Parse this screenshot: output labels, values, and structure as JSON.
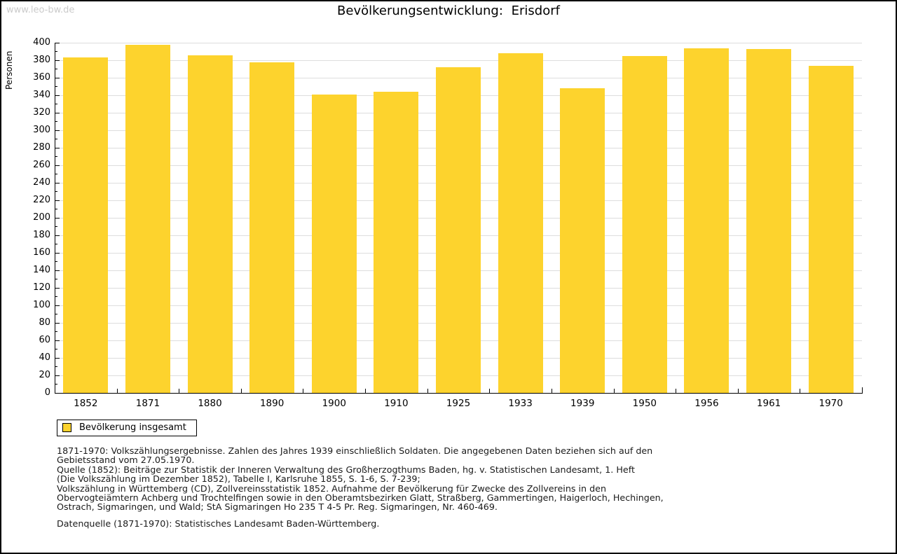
{
  "watermark": "www.leo-bw.de",
  "chart_data": {
    "type": "bar",
    "title": "Bevölkerungsentwicklung: Erisdorf",
    "ylabel": "Personen",
    "xlabel": "",
    "ylim": [
      0,
      400
    ],
    "ytick_step": 20,
    "minor_ytick_step": 10,
    "grid": "horizontal-major",
    "categories": [
      "1852",
      "1871",
      "1880",
      "1890",
      "1900",
      "1910",
      "1925",
      "1933",
      "1939",
      "1950",
      "1956",
      "1961",
      "1970"
    ],
    "values": [
      383,
      398,
      386,
      378,
      341,
      344,
      372,
      388,
      348,
      385,
      394,
      393,
      374
    ],
    "series_name": "Bevölkerung insgesamt",
    "legend": [
      "Bevölkerung insgesamt"
    ],
    "legend_position": "bottom-left",
    "bar_color": "#fdd32d"
  },
  "colors": {
    "bar": "#fdd32d",
    "grid": "#dddddd",
    "axis": "#000000",
    "watermark": "#cbcbcb",
    "text": "#1a1a1a"
  },
  "footer": {
    "lines": [
      "1871-1970: Volkszählungsergebnisse. Zahlen des Jahres 1939 einschließlich Soldaten. Die angegebenen Daten beziehen sich auf den",
      "Gebietsstand vom 27.05.1970.",
      "Quelle (1852): Beiträge zur Statistik der Inneren Verwaltung des Großherzogthums Baden, hg. v. Statistischen Landesamt, 1. Heft",
      "(Die Volkszählung im Dezember 1852), Tabelle I, Karlsruhe 1855, S. 1-6, S. 7-239;",
      "Volkszählung in Württemberg (CD), Zollvereinsstatistik 1852. Aufnahme der Bevölkerung für Zwecke des Zollvereins in den",
      "Obervogteiämtern Achberg und Trochtelfingen sowie in den Oberamtsbezirken Glatt, Straßberg, Gammertingen, Haigerloch, Hechingen,",
      "Ostrach, Sigmaringen, und Wald; StA Sigmaringen Ho 235 T 4-5 Pr. Reg. Sigmaringen, Nr. 460-469."
    ],
    "datasource": "Datenquelle (1871-1970): Statistisches Landesamt Baden-Württemberg."
  }
}
